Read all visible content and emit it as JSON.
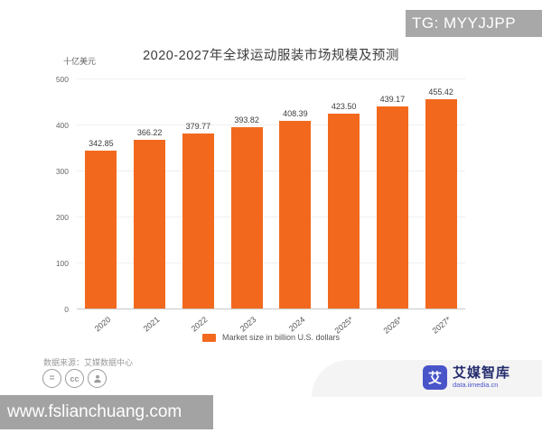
{
  "watermarks": {
    "top_right": "TG: MYYJJPP",
    "bottom_left": "www.fslianchuang.com"
  },
  "chart_data": {
    "type": "bar",
    "title": "2020-2027年全球运动服装市场规模及预测",
    "unit_label": "十亿美元",
    "categories": [
      "2020",
      "2021",
      "2022",
      "2023",
      "2024",
      "2025*",
      "2026*",
      "2027*"
    ],
    "values": [
      342.85,
      366.22,
      379.77,
      393.82,
      408.39,
      423.5,
      439.17,
      455.42
    ],
    "value_labels": [
      "342.85",
      "366.22",
      "379.77",
      "393.82",
      "408.39",
      "423.50",
      "439.17",
      "455.42"
    ],
    "ylim": [
      0,
      500
    ],
    "yticks": [
      0,
      100,
      200,
      300,
      400,
      500
    ],
    "grid": true,
    "legend": "Market size in billion U.S. dollars",
    "legend_position": "bottom",
    "bar_color": "#F2691E"
  },
  "footer": {
    "source_text": "数据来源：艾媒数据中心",
    "license_icons": [
      "equals-icon",
      "cc-icon",
      "person-icon"
    ],
    "logo": {
      "mark": "艾",
      "name": "艾媒智库",
      "site": "data.iimedia.cn"
    }
  },
  "colors": {
    "accent_orange": "#F2691E",
    "brand_blue": "#4a54c9",
    "watermark_gray": "#a8a8a8"
  }
}
